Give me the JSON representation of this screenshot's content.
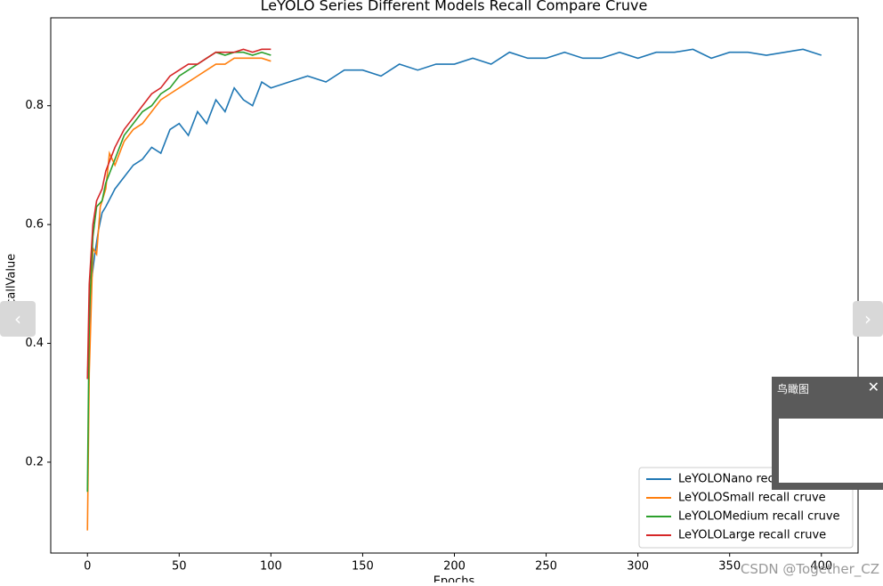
{
  "chart_data": {
    "type": "line",
    "title": "LeYOLO Series Different Models Recall Compare Cruve",
    "x_label": "Epochs",
    "y_label": "RecallValue",
    "xlim": [
      -20,
      420
    ],
    "ylim": [
      0.047,
      0.948
    ],
    "xticks": [
      0,
      50,
      100,
      150,
      200,
      250,
      300,
      350,
      400
    ],
    "yticks": [
      0.2,
      0.4,
      0.6,
      0.8
    ],
    "grid": false,
    "legend": "lower right",
    "series": [
      {
        "name": "LeYOLONano recall cruve",
        "color": "#1f77b4",
        "x": [
          0,
          2,
          4,
          6,
          8,
          10,
          15,
          20,
          25,
          30,
          35,
          40,
          45,
          50,
          55,
          60,
          65,
          70,
          75,
          80,
          85,
          90,
          95,
          100,
          110,
          120,
          130,
          140,
          150,
          160,
          170,
          180,
          190,
          200,
          210,
          220,
          230,
          240,
          250,
          260,
          270,
          280,
          290,
          300,
          310,
          320,
          330,
          340,
          350,
          360,
          370,
          380,
          390,
          400
        ],
        "values": [
          0.34,
          0.5,
          0.55,
          0.59,
          0.62,
          0.63,
          0.66,
          0.68,
          0.7,
          0.71,
          0.73,
          0.72,
          0.76,
          0.77,
          0.75,
          0.79,
          0.77,
          0.81,
          0.79,
          0.83,
          0.81,
          0.8,
          0.84,
          0.83,
          0.84,
          0.85,
          0.84,
          0.86,
          0.86,
          0.85,
          0.87,
          0.86,
          0.87,
          0.87,
          0.88,
          0.87,
          0.89,
          0.88,
          0.88,
          0.89,
          0.88,
          0.88,
          0.89,
          0.88,
          0.89,
          0.89,
          0.895,
          0.88,
          0.89,
          0.89,
          0.885,
          0.89,
          0.895,
          0.885
        ]
      },
      {
        "name": "LeYOLOSmall recall cruve",
        "color": "#ff7f0e",
        "x": [
          0,
          1,
          3,
          5,
          7,
          10,
          12,
          15,
          20,
          25,
          30,
          35,
          40,
          45,
          50,
          55,
          60,
          65,
          70,
          75,
          80,
          85,
          90,
          95,
          100
        ],
        "values": [
          0.085,
          0.35,
          0.56,
          0.55,
          0.63,
          0.66,
          0.72,
          0.7,
          0.74,
          0.76,
          0.77,
          0.79,
          0.81,
          0.82,
          0.83,
          0.84,
          0.85,
          0.86,
          0.87,
          0.87,
          0.88,
          0.88,
          0.88,
          0.88,
          0.875
        ]
      },
      {
        "name": "LeYOLOMedium recall cruve",
        "color": "#2ca02c",
        "x": [
          0,
          1,
          3,
          5,
          8,
          10,
          15,
          20,
          25,
          30,
          35,
          40,
          45,
          50,
          55,
          60,
          65,
          70,
          75,
          80,
          85,
          90,
          95,
          100
        ],
        "values": [
          0.15,
          0.45,
          0.58,
          0.63,
          0.64,
          0.67,
          0.71,
          0.75,
          0.77,
          0.79,
          0.8,
          0.82,
          0.83,
          0.85,
          0.86,
          0.87,
          0.88,
          0.89,
          0.885,
          0.89,
          0.89,
          0.885,
          0.89,
          0.885
        ]
      },
      {
        "name": "LeYOLOLarge recall cruve",
        "color": "#d62728",
        "x": [
          0,
          1,
          3,
          5,
          8,
          10,
          15,
          20,
          25,
          30,
          35,
          40,
          45,
          50,
          55,
          60,
          65,
          70,
          75,
          80,
          85,
          90,
          95,
          100
        ],
        "values": [
          0.34,
          0.5,
          0.6,
          0.64,
          0.66,
          0.69,
          0.73,
          0.76,
          0.78,
          0.8,
          0.82,
          0.83,
          0.85,
          0.86,
          0.87,
          0.87,
          0.88,
          0.89,
          0.89,
          0.89,
          0.895,
          0.89,
          0.895,
          0.895
        ]
      }
    ]
  },
  "ui": {
    "overlay_title": "鸟瞰图",
    "watermark": "CSDN @Together_CZ"
  }
}
